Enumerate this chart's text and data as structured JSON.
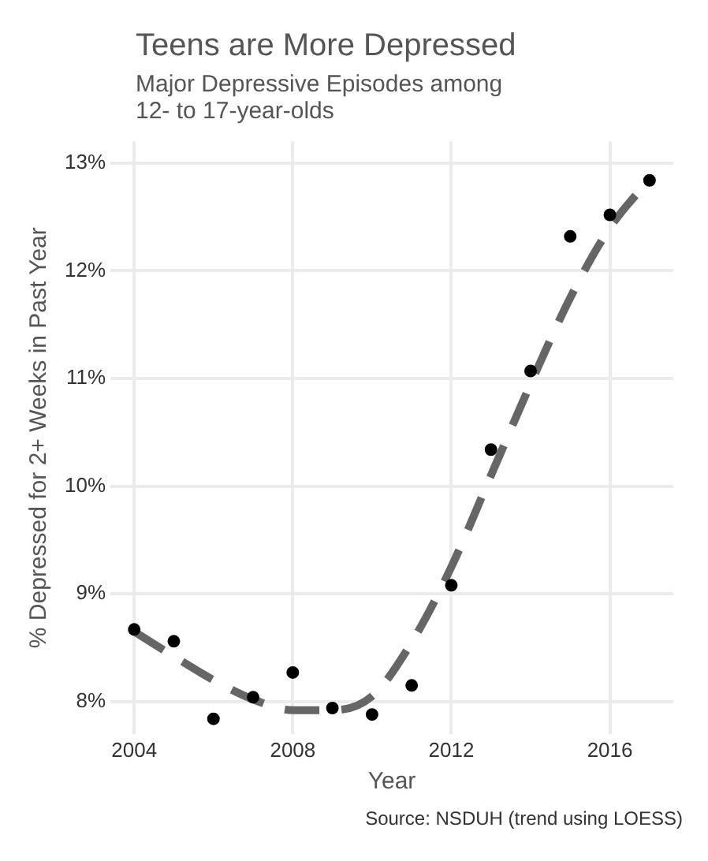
{
  "chart_data": {
    "type": "scatter",
    "title": "Teens are More Depressed",
    "subtitle": "Major Depressive Episodes among\n12- to 17-year-olds",
    "xlabel": "Year",
    "ylabel": "% Depressed for 2+ Weeks in Past Year",
    "x": [
      2004,
      2005,
      2006,
      2007,
      2008,
      2009,
      2010,
      2011,
      2012,
      2013,
      2014,
      2015,
      2016,
      2017
    ],
    "series": [
      {
        "type": "line",
        "color": "#666666",
        "line_style": "dashed",
        "marker": "none",
        "x": [
          2004,
          2005,
          2006,
          2007,
          2008,
          2009,
          2010,
          2011,
          2012,
          2013,
          2014,
          2015,
          2016,
          2017
        ],
        "values": [
          8.65,
          8.42,
          8.2,
          8.02,
          7.92,
          7.92,
          8.05,
          8.55,
          9.25,
          10.1,
          10.95,
          11.75,
          12.4,
          12.85
        ]
      },
      {
        "type": "scatter",
        "color": "#000000",
        "marker": "circle",
        "values": [
          8.67,
          8.56,
          7.84,
          8.04,
          8.27,
          7.94,
          7.88,
          8.15,
          9.08,
          10.34,
          11.07,
          12.32,
          12.52,
          12.84
        ]
      }
    ],
    "xlim": [
      2003.4,
      2017.6
    ],
    "xticks": [
      2004,
      2008,
      2012,
      2016
    ],
    "ylim": [
      7.7,
      13.2
    ],
    "yticks": [
      {
        "value": 8,
        "label": "8%"
      },
      {
        "value": 9,
        "label": "9%"
      },
      {
        "value": 10,
        "label": "10%"
      },
      {
        "value": 11,
        "label": "11%"
      },
      {
        "value": 12,
        "label": "12%"
      },
      {
        "value": 13,
        "label": "13%"
      }
    ],
    "grid": true,
    "legend": false,
    "annotations": [
      "Source: NSDUH (trend using LOESS)"
    ]
  }
}
